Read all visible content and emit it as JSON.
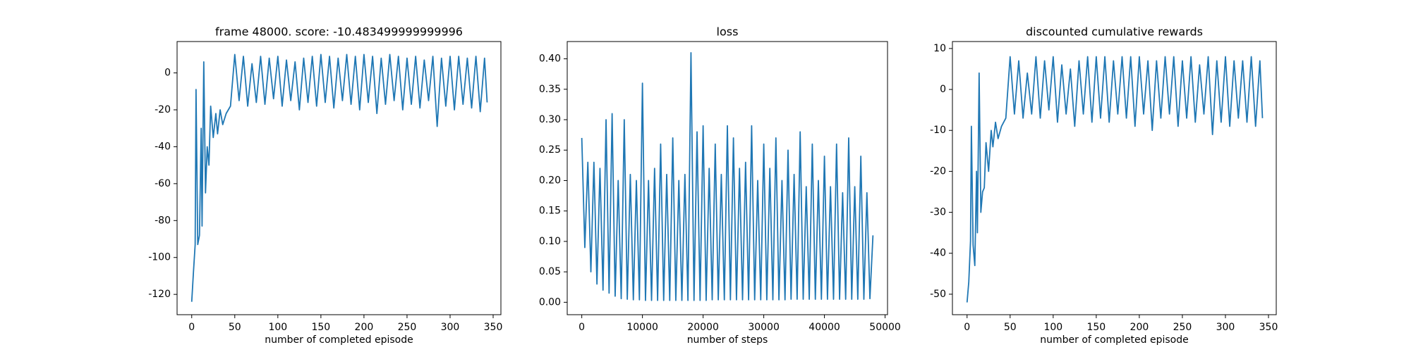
{
  "chart_data": [
    {
      "type": "line",
      "title": "frame 48000. score: -10.483499999999996",
      "xlabel": "number of completed episode",
      "color": "#1f77b4",
      "x": [
        0,
        2,
        4,
        5,
        7,
        9,
        11,
        12,
        14,
        16,
        18,
        20,
        22,
        25,
        28,
        30,
        33,
        36,
        40,
        45,
        50,
        55,
        60,
        65,
        70,
        75,
        80,
        85,
        90,
        95,
        100,
        105,
        110,
        115,
        120,
        125,
        130,
        135,
        140,
        145,
        150,
        155,
        160,
        165,
        170,
        175,
        180,
        185,
        190,
        195,
        200,
        205,
        210,
        215,
        220,
        225,
        230,
        235,
        240,
        245,
        250,
        255,
        260,
        265,
        270,
        275,
        280,
        285,
        290,
        295,
        300,
        305,
        310,
        315,
        320,
        325,
        330,
        335,
        340,
        343
      ],
      "values": [
        -124,
        -108,
        -93,
        -9,
        -93,
        -88,
        -30,
        -83,
        6,
        -65,
        -40,
        -50,
        -18,
        -35,
        -22,
        -33,
        -20,
        -28,
        -22,
        -18,
        10,
        -15,
        9,
        -18,
        5,
        -16,
        9,
        -17,
        8,
        -14,
        9,
        -18,
        7,
        -15,
        6,
        -20,
        8,
        -16,
        9,
        -18,
        10,
        -16,
        9,
        -19,
        8,
        -15,
        10,
        -17,
        9,
        -20,
        10,
        -16,
        9,
        -22,
        8,
        -17,
        10,
        -15,
        9,
        -20,
        8,
        -17,
        9,
        -19,
        7,
        -15,
        9,
        -29,
        8,
        -18,
        9,
        -20,
        9,
        -17,
        8,
        -19,
        9,
        -21,
        8,
        -16
      ],
      "xlim": [
        -17,
        359
      ],
      "ylim": [
        -131,
        17
      ],
      "xticks": [
        0,
        50,
        100,
        150,
        200,
        250,
        300,
        350
      ],
      "yticks": [
        -120,
        -100,
        -80,
        -60,
        -40,
        -20,
        0
      ]
    },
    {
      "type": "line",
      "title": "loss",
      "xlabel": "number of steps",
      "color": "#1f77b4",
      "x": [
        0,
        500,
        1000,
        1500,
        2000,
        2500,
        3000,
        3500,
        4000,
        4500,
        5000,
        5500,
        6000,
        6500,
        7000,
        7500,
        8000,
        8500,
        9000,
        9500,
        10000,
        10500,
        11000,
        11500,
        12000,
        12500,
        13000,
        13500,
        14000,
        14500,
        15000,
        15500,
        16000,
        16500,
        17000,
        17500,
        18000,
        18500,
        19000,
        19500,
        20000,
        20500,
        21000,
        21500,
        22000,
        22500,
        23000,
        23500,
        24000,
        24500,
        25000,
        25500,
        26000,
        26500,
        27000,
        27500,
        28000,
        28500,
        29000,
        29500,
        30000,
        30500,
        31000,
        31500,
        32000,
        32500,
        33000,
        33500,
        34000,
        34500,
        35000,
        35500,
        36000,
        36500,
        37000,
        37500,
        38000,
        38500,
        39000,
        39500,
        40000,
        40500,
        41000,
        41500,
        42000,
        42500,
        43000,
        43500,
        44000,
        44500,
        45000,
        45500,
        46000,
        46500,
        47000,
        47500,
        48000
      ],
      "values": [
        0.27,
        0.09,
        0.23,
        0.05,
        0.23,
        0.03,
        0.22,
        0.02,
        0.3,
        0.015,
        0.31,
        0.01,
        0.2,
        0.006,
        0.3,
        0.005,
        0.21,
        0.004,
        0.2,
        0.004,
        0.36,
        0.003,
        0.2,
        0.003,
        0.22,
        0.003,
        0.26,
        0.003,
        0.21,
        0.003,
        0.27,
        0.003,
        0.2,
        0.003,
        0.21,
        0.003,
        0.41,
        0.003,
        0.28,
        0.003,
        0.29,
        0.003,
        0.22,
        0.004,
        0.26,
        0.004,
        0.21,
        0.004,
        0.29,
        0.004,
        0.27,
        0.004,
        0.22,
        0.004,
        0.23,
        0.004,
        0.29,
        0.004,
        0.2,
        0.004,
        0.26,
        0.004,
        0.22,
        0.004,
        0.27,
        0.004,
        0.2,
        0.004,
        0.25,
        0.005,
        0.21,
        0.005,
        0.28,
        0.005,
        0.19,
        0.005,
        0.26,
        0.005,
        0.2,
        0.005,
        0.24,
        0.005,
        0.19,
        0.005,
        0.26,
        0.005,
        0.18,
        0.005,
        0.27,
        0.005,
        0.19,
        0.005,
        0.24,
        0.005,
        0.18,
        0.006,
        0.11
      ],
      "xlim": [
        -2400,
        50400
      ],
      "ylim": [
        -0.0204,
        0.4284
      ],
      "xticks": [
        0,
        10000,
        20000,
        30000,
        40000,
        50000
      ],
      "yticks": [
        {
          "value": 0,
          "label": "0.00"
        },
        {
          "value": 0.05,
          "label": "0.05"
        },
        {
          "value": 0.1,
          "label": "0.10"
        },
        {
          "value": 0.15,
          "label": "0.15"
        },
        {
          "value": 0.2,
          "label": "0.20"
        },
        {
          "value": 0.25,
          "label": "0.25"
        },
        {
          "value": 0.3,
          "label": "0.30"
        },
        {
          "value": 0.35,
          "label": "0.35"
        },
        {
          "value": 0.4,
          "label": "0.40"
        }
      ]
    },
    {
      "type": "line",
      "title": "discounted cumulative rewards",
      "xlabel": "number of completed episode",
      "color": "#1f77b4",
      "x": [
        0,
        2,
        4,
        5,
        7,
        9,
        11,
        12,
        14,
        16,
        18,
        20,
        22,
        25,
        28,
        30,
        33,
        36,
        40,
        45,
        50,
        55,
        60,
        65,
        70,
        75,
        80,
        85,
        90,
        95,
        100,
        105,
        110,
        115,
        120,
        125,
        130,
        135,
        140,
        145,
        150,
        155,
        160,
        165,
        170,
        175,
        180,
        185,
        190,
        195,
        200,
        205,
        210,
        215,
        220,
        225,
        230,
        235,
        240,
        245,
        250,
        255,
        260,
        265,
        270,
        275,
        280,
        285,
        290,
        295,
        300,
        305,
        310,
        315,
        320,
        325,
        330,
        335,
        340,
        343
      ],
      "values": [
        -52,
        -47,
        -37,
        -9,
        -38,
        -43,
        -20,
        -35,
        4,
        -30,
        -25,
        -24,
        -13,
        -20,
        -10,
        -14,
        -8,
        -12,
        -9,
        -7,
        8,
        -6,
        7,
        -7,
        4,
        -6,
        8,
        -7,
        7,
        -5,
        8,
        -8,
        6,
        -6,
        5,
        -9,
        7,
        -6,
        8,
        -8,
        8,
        -7,
        8,
        -8,
        7,
        -6,
        8,
        -7,
        8,
        -9,
        8,
        -6,
        7,
        -10,
        7,
        -7,
        8,
        -6,
        8,
        -9,
        7,
        -7,
        8,
        -8,
        6,
        -6,
        8,
        -11,
        7,
        -8,
        8,
        -9,
        7,
        -7,
        7,
        -8,
        8,
        -9,
        7,
        -7
      ],
      "xlim": [
        -17,
        359
      ],
      "ylim": [
        -55,
        11.7
      ],
      "xticks": [
        0,
        50,
        100,
        150,
        200,
        250,
        300,
        350
      ],
      "yticks": [
        -50,
        -40,
        -30,
        -20,
        -10,
        0,
        10
      ]
    }
  ]
}
